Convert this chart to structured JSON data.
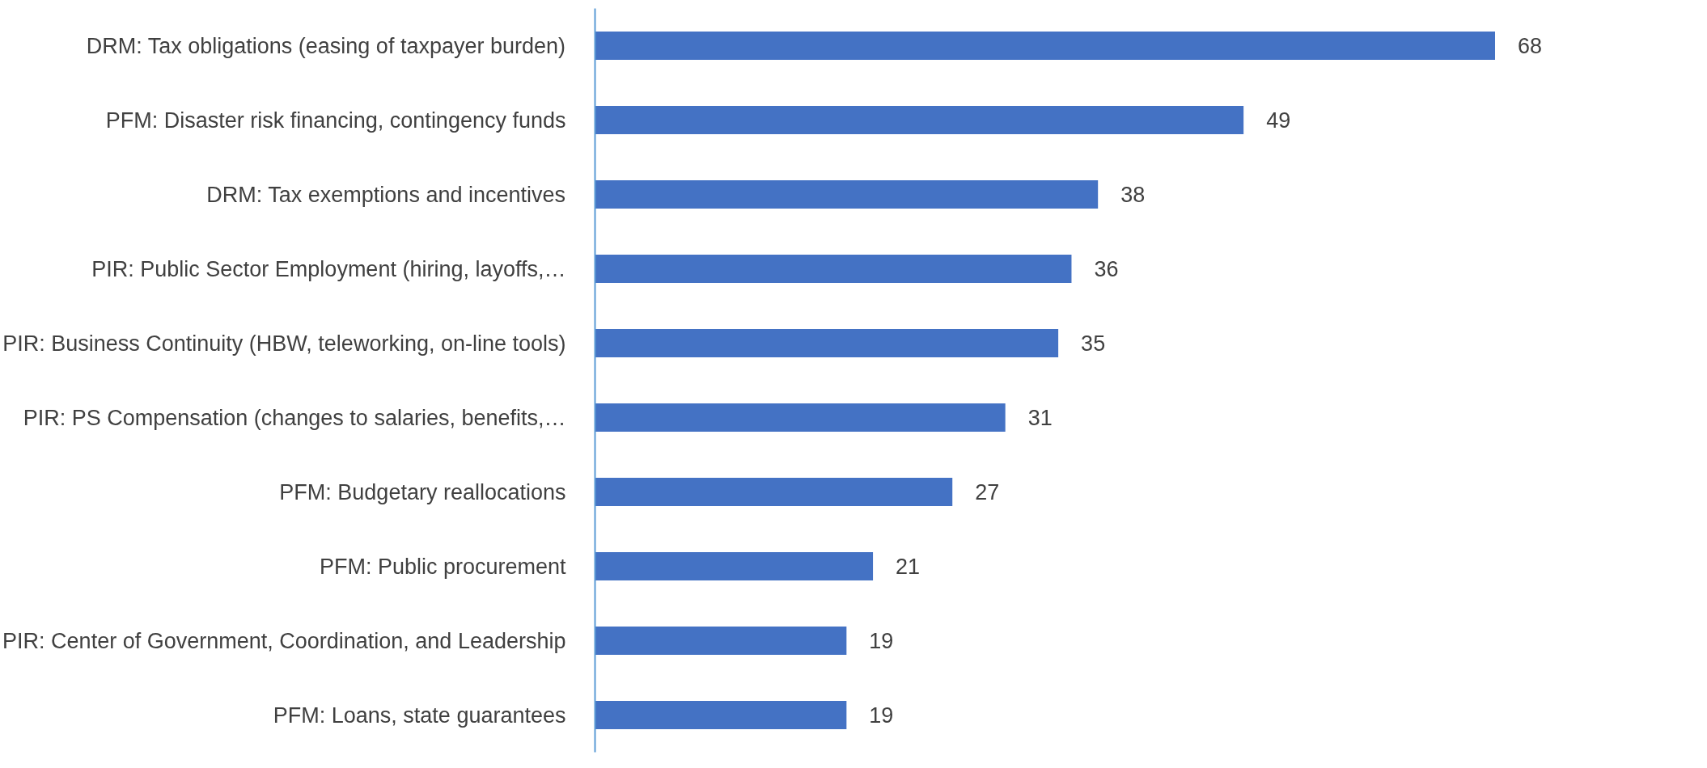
{
  "chart_data": {
    "type": "bar",
    "orientation": "horizontal",
    "categories": [
      "DRM: Tax obligations (easing of taxpayer burden)",
      "PFM: Disaster risk financing, contingency funds",
      "DRM: Tax exemptions and incentives",
      "PIR: Public Sector Employment (hiring, layoffs,…",
      "PIR: Business Continuity (HBW, teleworking, on-line tools)",
      "PIR: PS Compensation (changes to salaries, benefits,…",
      "PFM: Budgetary reallocations",
      "PFM: Public procurement",
      "PIR: Center of Government, Coordination, and Leadership",
      "PFM: Loans, state guarantees"
    ],
    "values": [
      68,
      49,
      38,
      36,
      35,
      31,
      27,
      21,
      19,
      19
    ],
    "color": "#4472c4",
    "data_labels": true,
    "grid": false
  }
}
